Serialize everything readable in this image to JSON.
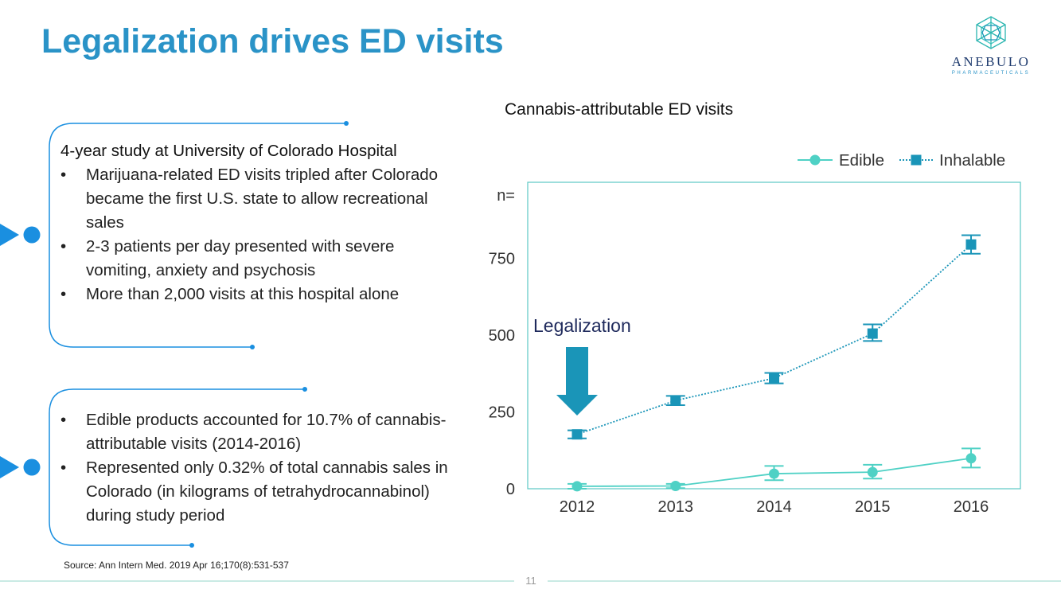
{
  "title": "Legalization drives ED visits",
  "logo": {
    "name": "ANEBULO",
    "subtitle": "PHARMACEUTICALS"
  },
  "box1": {
    "heading": "4-year study at University of Colorado Hospital",
    "bullets": [
      "Marijuana-related ED visits tripled after Colorado became the first U.S. state to allow recreational sales",
      "2-3 patients per day presented with severe vomiting, anxiety and psychosis",
      "More than 2,000 visits at this hospital alone"
    ]
  },
  "box2": {
    "bullets": [
      "Edible products accounted for 10.7% of cannabis-attributable visits (2014-2016)",
      "Represented only 0.32% of total cannabis sales in Colorado (in kilograms of tetrahydrocannabinol) during study period"
    ]
  },
  "source": "Source:  Ann Intern Med. 2019 Apr 16;170(8):531-537",
  "page_number": "11",
  "colors": {
    "title": "#2a93c7",
    "edible": "#4fd1c5",
    "inhalable": "#1a95b8",
    "arrow": "#1a95b8",
    "annotation": "#1f2a5c",
    "accent": "#1a8fe0"
  },
  "chart_data": {
    "type": "line",
    "title": "Cannabis-attributable ED visits",
    "y_unit_label": "n=",
    "categories": [
      "2012",
      "2013",
      "2014",
      "2015",
      "2016"
    ],
    "yticks": [
      "0",
      "250",
      "500",
      "750"
    ],
    "ylim": [
      0,
      900
    ],
    "legend_position": "top-right",
    "grid": false,
    "annotation": {
      "text": "Legalization",
      "category": "2012"
    },
    "series": [
      {
        "name": "Edible",
        "marker": "circle",
        "line_style": "solid",
        "values": [
          8,
          9,
          49,
          54,
          99
        ],
        "error_low": [
          0,
          2,
          28,
          33,
          69
        ],
        "error_high": [
          16,
          16,
          74,
          78,
          131
        ]
      },
      {
        "name": "Inhalable",
        "marker": "square",
        "line_style": "dotted",
        "values": [
          177,
          287,
          360,
          505,
          795
        ],
        "error_low": [
          164,
          272,
          343,
          481,
          765
        ],
        "error_high": [
          190,
          302,
          377,
          535,
          825
        ]
      }
    ]
  }
}
